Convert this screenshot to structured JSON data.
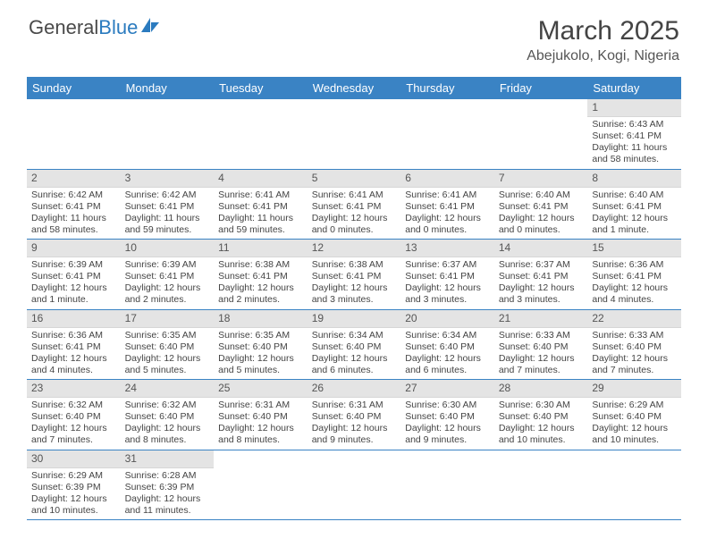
{
  "logo": {
    "general": "General",
    "blue": "Blue"
  },
  "title": "March 2025",
  "location": "Abejukolo, Kogi, Nigeria",
  "colors": {
    "header_bg": "#3a83c4",
    "header_text": "#ffffff",
    "daynum_bg": "#e4e4e4",
    "row_divider": "#3a83c4",
    "body_text": "#444444",
    "logo_blue": "#2b7bbf",
    "logo_gray": "#4a4a4a"
  },
  "weekdays": [
    "Sunday",
    "Monday",
    "Tuesday",
    "Wednesday",
    "Thursday",
    "Friday",
    "Saturday"
  ],
  "weeks": [
    [
      null,
      null,
      null,
      null,
      null,
      null,
      {
        "n": "1",
        "sr": "Sunrise: 6:43 AM",
        "ss": "Sunset: 6:41 PM",
        "dl": "Daylight: 11 hours and 58 minutes."
      }
    ],
    [
      {
        "n": "2",
        "sr": "Sunrise: 6:42 AM",
        "ss": "Sunset: 6:41 PM",
        "dl": "Daylight: 11 hours and 58 minutes."
      },
      {
        "n": "3",
        "sr": "Sunrise: 6:42 AM",
        "ss": "Sunset: 6:41 PM",
        "dl": "Daylight: 11 hours and 59 minutes."
      },
      {
        "n": "4",
        "sr": "Sunrise: 6:41 AM",
        "ss": "Sunset: 6:41 PM",
        "dl": "Daylight: 11 hours and 59 minutes."
      },
      {
        "n": "5",
        "sr": "Sunrise: 6:41 AM",
        "ss": "Sunset: 6:41 PM",
        "dl": "Daylight: 12 hours and 0 minutes."
      },
      {
        "n": "6",
        "sr": "Sunrise: 6:41 AM",
        "ss": "Sunset: 6:41 PM",
        "dl": "Daylight: 12 hours and 0 minutes."
      },
      {
        "n": "7",
        "sr": "Sunrise: 6:40 AM",
        "ss": "Sunset: 6:41 PM",
        "dl": "Daylight: 12 hours and 0 minutes."
      },
      {
        "n": "8",
        "sr": "Sunrise: 6:40 AM",
        "ss": "Sunset: 6:41 PM",
        "dl": "Daylight: 12 hours and 1 minute."
      }
    ],
    [
      {
        "n": "9",
        "sr": "Sunrise: 6:39 AM",
        "ss": "Sunset: 6:41 PM",
        "dl": "Daylight: 12 hours and 1 minute."
      },
      {
        "n": "10",
        "sr": "Sunrise: 6:39 AM",
        "ss": "Sunset: 6:41 PM",
        "dl": "Daylight: 12 hours and 2 minutes."
      },
      {
        "n": "11",
        "sr": "Sunrise: 6:38 AM",
        "ss": "Sunset: 6:41 PM",
        "dl": "Daylight: 12 hours and 2 minutes."
      },
      {
        "n": "12",
        "sr": "Sunrise: 6:38 AM",
        "ss": "Sunset: 6:41 PM",
        "dl": "Daylight: 12 hours and 3 minutes."
      },
      {
        "n": "13",
        "sr": "Sunrise: 6:37 AM",
        "ss": "Sunset: 6:41 PM",
        "dl": "Daylight: 12 hours and 3 minutes."
      },
      {
        "n": "14",
        "sr": "Sunrise: 6:37 AM",
        "ss": "Sunset: 6:41 PM",
        "dl": "Daylight: 12 hours and 3 minutes."
      },
      {
        "n": "15",
        "sr": "Sunrise: 6:36 AM",
        "ss": "Sunset: 6:41 PM",
        "dl": "Daylight: 12 hours and 4 minutes."
      }
    ],
    [
      {
        "n": "16",
        "sr": "Sunrise: 6:36 AM",
        "ss": "Sunset: 6:41 PM",
        "dl": "Daylight: 12 hours and 4 minutes."
      },
      {
        "n": "17",
        "sr": "Sunrise: 6:35 AM",
        "ss": "Sunset: 6:40 PM",
        "dl": "Daylight: 12 hours and 5 minutes."
      },
      {
        "n": "18",
        "sr": "Sunrise: 6:35 AM",
        "ss": "Sunset: 6:40 PM",
        "dl": "Daylight: 12 hours and 5 minutes."
      },
      {
        "n": "19",
        "sr": "Sunrise: 6:34 AM",
        "ss": "Sunset: 6:40 PM",
        "dl": "Daylight: 12 hours and 6 minutes."
      },
      {
        "n": "20",
        "sr": "Sunrise: 6:34 AM",
        "ss": "Sunset: 6:40 PM",
        "dl": "Daylight: 12 hours and 6 minutes."
      },
      {
        "n": "21",
        "sr": "Sunrise: 6:33 AM",
        "ss": "Sunset: 6:40 PM",
        "dl": "Daylight: 12 hours and 7 minutes."
      },
      {
        "n": "22",
        "sr": "Sunrise: 6:33 AM",
        "ss": "Sunset: 6:40 PM",
        "dl": "Daylight: 12 hours and 7 minutes."
      }
    ],
    [
      {
        "n": "23",
        "sr": "Sunrise: 6:32 AM",
        "ss": "Sunset: 6:40 PM",
        "dl": "Daylight: 12 hours and 7 minutes."
      },
      {
        "n": "24",
        "sr": "Sunrise: 6:32 AM",
        "ss": "Sunset: 6:40 PM",
        "dl": "Daylight: 12 hours and 8 minutes."
      },
      {
        "n": "25",
        "sr": "Sunrise: 6:31 AM",
        "ss": "Sunset: 6:40 PM",
        "dl": "Daylight: 12 hours and 8 minutes."
      },
      {
        "n": "26",
        "sr": "Sunrise: 6:31 AM",
        "ss": "Sunset: 6:40 PM",
        "dl": "Daylight: 12 hours and 9 minutes."
      },
      {
        "n": "27",
        "sr": "Sunrise: 6:30 AM",
        "ss": "Sunset: 6:40 PM",
        "dl": "Daylight: 12 hours and 9 minutes."
      },
      {
        "n": "28",
        "sr": "Sunrise: 6:30 AM",
        "ss": "Sunset: 6:40 PM",
        "dl": "Daylight: 12 hours and 10 minutes."
      },
      {
        "n": "29",
        "sr": "Sunrise: 6:29 AM",
        "ss": "Sunset: 6:40 PM",
        "dl": "Daylight: 12 hours and 10 minutes."
      }
    ],
    [
      {
        "n": "30",
        "sr": "Sunrise: 6:29 AM",
        "ss": "Sunset: 6:39 PM",
        "dl": "Daylight: 12 hours and 10 minutes."
      },
      {
        "n": "31",
        "sr": "Sunrise: 6:28 AM",
        "ss": "Sunset: 6:39 PM",
        "dl": "Daylight: 12 hours and 11 minutes."
      },
      null,
      null,
      null,
      null,
      null
    ]
  ]
}
